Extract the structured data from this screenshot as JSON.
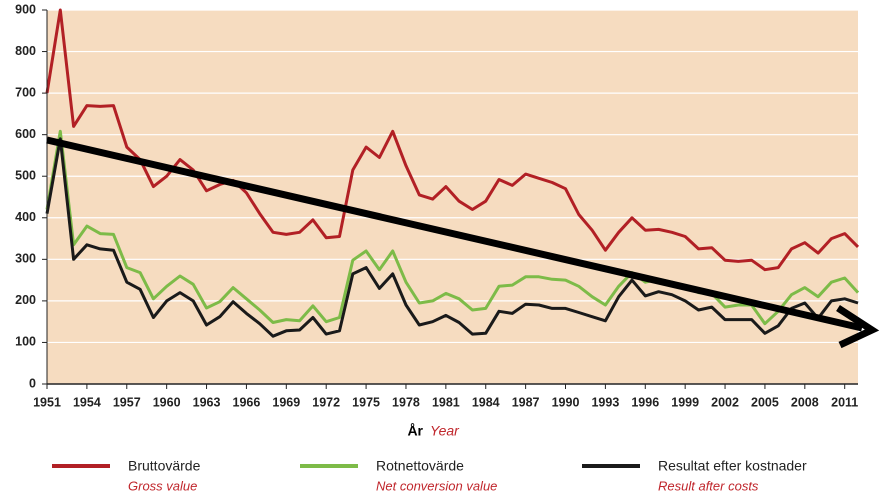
{
  "chart_data": {
    "type": "line",
    "xlabel": "År",
    "xlabel_en": "Year",
    "x": [
      1951,
      1952,
      1953,
      1954,
      1955,
      1956,
      1957,
      1958,
      1959,
      1960,
      1961,
      1962,
      1963,
      1964,
      1965,
      1966,
      1967,
      1968,
      1969,
      1970,
      1971,
      1972,
      1973,
      1974,
      1975,
      1976,
      1977,
      1978,
      1979,
      1980,
      1981,
      1982,
      1983,
      1984,
      1985,
      1986,
      1987,
      1988,
      1989,
      1990,
      1991,
      1992,
      1993,
      1994,
      1995,
      1996,
      1997,
      1998,
      1999,
      2000,
      2001,
      2002,
      2003,
      2004,
      2005,
      2006,
      2007,
      2008,
      2009,
      2010,
      2011,
      2012
    ],
    "series": [
      {
        "name": "Bruttovärde",
        "subtitle": "Gross value",
        "color": "#b22025",
        "values": [
          700,
          900,
          620,
          670,
          668,
          670,
          570,
          540,
          475,
          500,
          540,
          515,
          465,
          480,
          490,
          460,
          410,
          365,
          360,
          365,
          395,
          352,
          355,
          515,
          570,
          545,
          608,
          525,
          455,
          445,
          475,
          440,
          420,
          440,
          492,
          478,
          505,
          495,
          485,
          470,
          408,
          370,
          322,
          365,
          400,
          370,
          372,
          365,
          355,
          325,
          328,
          298,
          295,
          298,
          275,
          280,
          325,
          340,
          315,
          350,
          362,
          330
        ]
      },
      {
        "name": "Rotnettovärde",
        "subtitle": "Net conversion value",
        "color": "#7dbb48",
        "values": [
          420,
          608,
          335,
          380,
          362,
          360,
          280,
          268,
          205,
          235,
          260,
          240,
          183,
          198,
          232,
          205,
          178,
          148,
          155,
          152,
          188,
          150,
          160,
          298,
          320,
          275,
          320,
          245,
          195,
          200,
          218,
          205,
          178,
          182,
          235,
          238,
          258,
          258,
          252,
          250,
          235,
          210,
          190,
          235,
          268,
          245,
          252,
          245,
          235,
          220,
          218,
          185,
          190,
          190,
          145,
          175,
          215,
          232,
          210,
          245,
          255,
          220
        ]
      },
      {
        "name": "Resultat efter kostnader",
        "subtitle": "Result after costs",
        "color": "#1a1a1a",
        "values": [
          410,
          590,
          300,
          335,
          325,
          322,
          245,
          228,
          160,
          200,
          220,
          200,
          142,
          162,
          198,
          170,
          145,
          115,
          128,
          130,
          160,
          120,
          128,
          265,
          280,
          230,
          265,
          190,
          142,
          150,
          165,
          148,
          120,
          122,
          175,
          170,
          192,
          190,
          182,
          182,
          172,
          162,
          152,
          210,
          250,
          212,
          222,
          215,
          200,
          178,
          185,
          155,
          155,
          155,
          122,
          140,
          182,
          195,
          158,
          200,
          205,
          195
        ]
      }
    ],
    "xlim": [
      1951,
      2012
    ],
    "xticks": [
      1951,
      1954,
      1957,
      1960,
      1963,
      1966,
      1969,
      1972,
      1975,
      1978,
      1981,
      1984,
      1987,
      1990,
      1993,
      1996,
      1999,
      2002,
      2005,
      2008,
      2011
    ],
    "ylim": [
      0,
      900
    ],
    "yticks": [
      0,
      100,
      200,
      300,
      400,
      500,
      600,
      700,
      800,
      900
    ],
    "grid": true
  }
}
